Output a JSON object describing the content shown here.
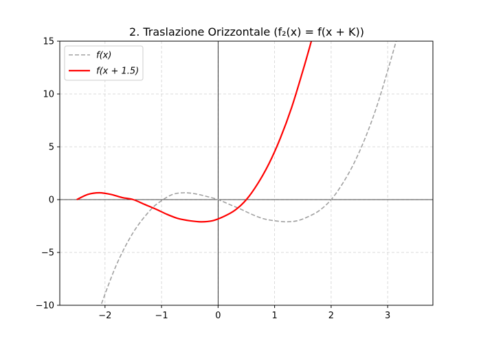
{
  "chart_data": {
    "type": "line",
    "title": "2. Traslazione Orizzontale (f₂(x) = f(x + K))",
    "xlabel": "",
    "ylabel": "",
    "xlim": [
      -2.8,
      3.8
    ],
    "ylim": [
      -10,
      15
    ],
    "xticks": [
      -2,
      -1,
      0,
      1,
      2,
      3
    ],
    "yticks": [
      -10,
      -5,
      0,
      5,
      10,
      15
    ],
    "xtick_labels": [
      "−2",
      "−1",
      "0",
      "1",
      "2",
      "3"
    ],
    "ytick_labels": [
      "−10",
      "−5",
      "0",
      "5",
      "10",
      "15"
    ],
    "grid": true,
    "legend_position": "top-left",
    "series": [
      {
        "name": "f(x)",
        "color": "#a0a0a0",
        "style": "dashed",
        "x": [
          -2.1,
          -1.8,
          -1.5,
          -1.2,
          -1.0,
          -0.8,
          -0.6,
          -0.4,
          -0.2,
          0.0,
          0.2,
          0.4,
          0.6,
          0.8,
          1.0,
          1.2,
          1.4,
          1.6,
          1.8,
          2.0,
          2.2,
          2.4,
          2.6,
          2.8,
          3.0,
          3.15
        ],
        "y": [
          -10.4,
          -6.2,
          -3.1,
          -1.0,
          -0.1,
          0.5,
          0.65,
          0.55,
          0.3,
          0.0,
          -0.45,
          -0.9,
          -1.4,
          -1.8,
          -2.0,
          -2.1,
          -2.0,
          -1.6,
          -1.0,
          0.0,
          1.5,
          3.4,
          5.8,
          8.7,
          12.2,
          15.0
        ]
      },
      {
        "name": "f(x + 1.5)",
        "color": "#ff0000",
        "style": "solid",
        "x": [
          -2.5,
          -2.3,
          -2.1,
          -1.9,
          -1.7,
          -1.5,
          -1.3,
          -1.1,
          -0.9,
          -0.7,
          -0.5,
          -0.3,
          -0.1,
          0.1,
          0.3,
          0.5,
          0.7,
          0.9,
          1.1,
          1.3,
          1.5,
          1.65
        ],
        "y": [
          0.0,
          0.5,
          0.65,
          0.5,
          0.2,
          0.0,
          -0.45,
          -0.9,
          -1.4,
          -1.8,
          -2.0,
          -2.1,
          -2.0,
          -1.6,
          -1.0,
          0.0,
          1.5,
          3.4,
          5.8,
          8.7,
          12.2,
          15.0
        ]
      }
    ]
  }
}
